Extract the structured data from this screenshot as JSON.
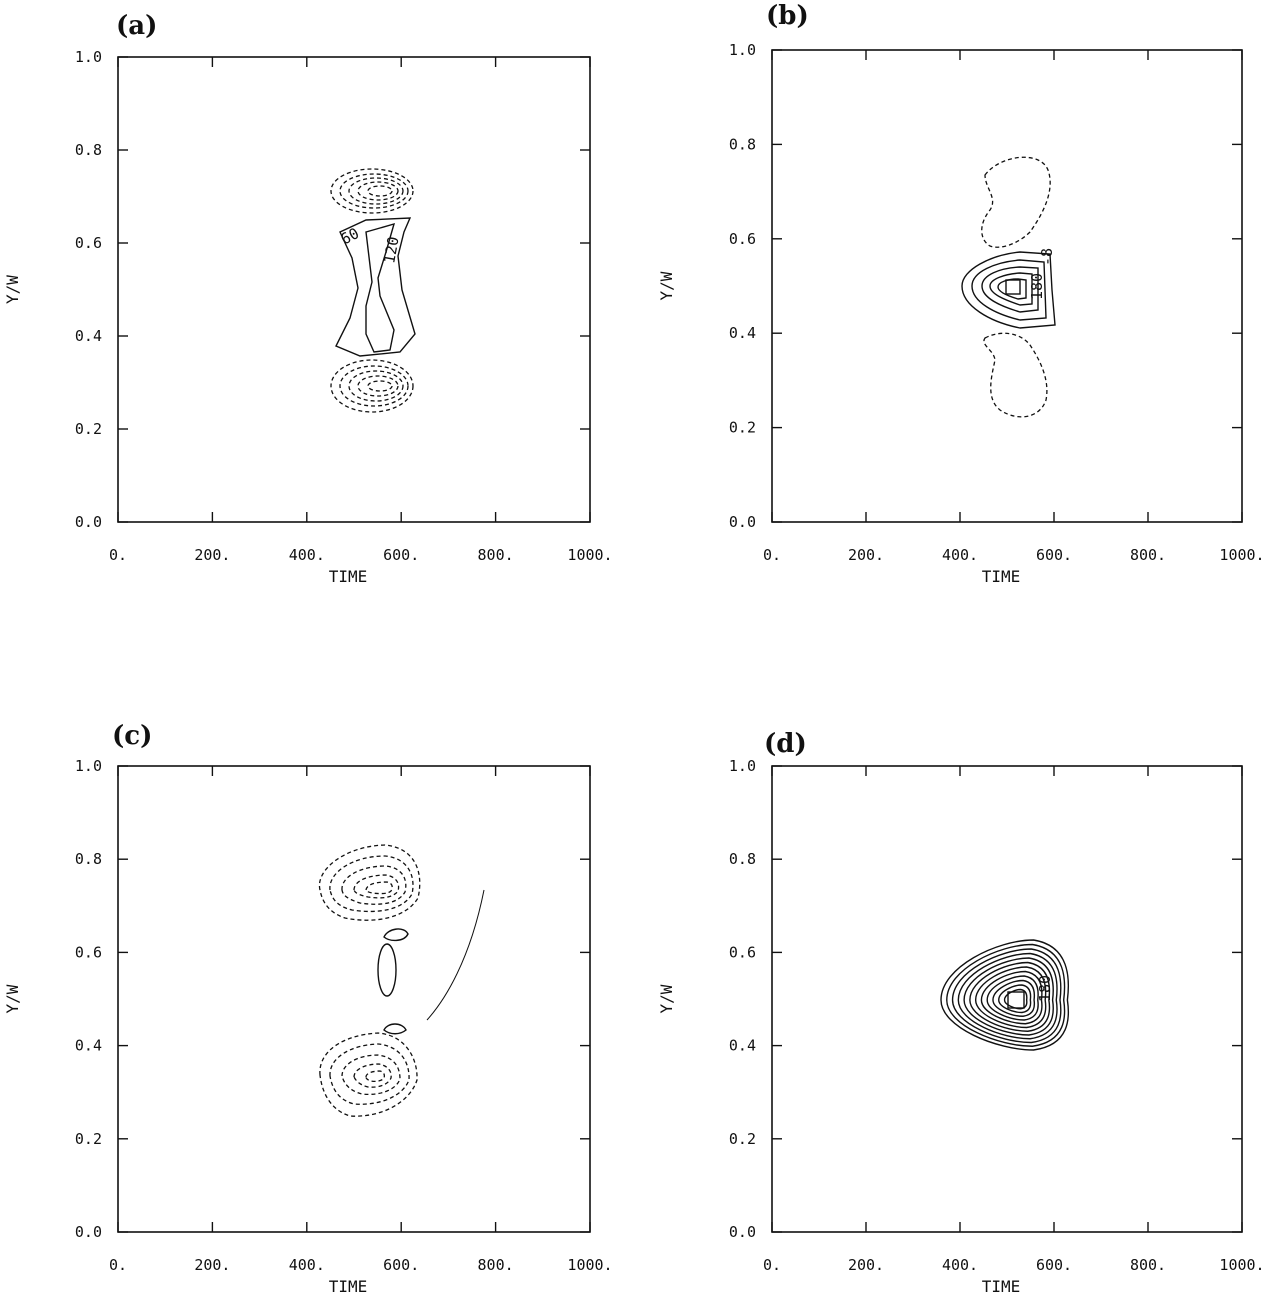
{
  "chart_data": [
    {
      "type": "contour",
      "panel_label": "(a)",
      "xlabel": "TIME",
      "ylabel": "Y/W",
      "xlim": [
        0,
        1000
      ],
      "ylim": [
        0,
        1
      ],
      "xticks": [
        "0.",
        "200.",
        "400.",
        "600.",
        "800.",
        "1000."
      ],
      "yticks": [
        "0.0",
        "0.2",
        "0.4",
        "0.6",
        "0.8",
        "1.0"
      ],
      "contour_labels": [
        "60",
        "120"
      ],
      "features": [
        {
          "kind": "positive",
          "center": [
            550,
            0.5
          ],
          "description": "hourglass-shaped region",
          "levels": [
            60,
            120
          ]
        },
        {
          "kind": "negative",
          "center": [
            550,
            0.72
          ]
        },
        {
          "kind": "negative",
          "center": [
            550,
            0.28
          ]
        }
      ]
    },
    {
      "type": "contour",
      "panel_label": "(b)",
      "xlabel": "TIME",
      "ylabel": "Y/W",
      "xlim": [
        0,
        1000
      ],
      "ylim": [
        0,
        1
      ],
      "xticks": [
        "0.",
        "200.",
        "400.",
        "600.",
        "800.",
        "1000."
      ],
      "yticks": [
        "0.0",
        "0.2",
        "0.4",
        "0.6",
        "0.8",
        "1.0"
      ],
      "contour_labels": [
        "180",
        "-8"
      ],
      "features": [
        {
          "kind": "positive",
          "center": [
            530,
            0.5
          ],
          "peak_label": 180
        },
        {
          "kind": "negative",
          "center": [
            550,
            0.68
          ]
        },
        {
          "kind": "negative",
          "center": [
            550,
            0.32
          ]
        }
      ]
    },
    {
      "type": "contour",
      "panel_label": "(c)",
      "xlabel": "TIME",
      "ylabel": "Y/W",
      "xlim": [
        0,
        1000
      ],
      "ylim": [
        0,
        1
      ],
      "xticks": [
        "0.",
        "200.",
        "400.",
        "600.",
        "800.",
        "1000."
      ],
      "yticks": [
        "0.0",
        "0.2",
        "0.4",
        "0.6",
        "0.8",
        "1.0"
      ],
      "contour_labels": [],
      "features": [
        {
          "kind": "negative",
          "center": [
            530,
            0.71
          ]
        },
        {
          "kind": "negative",
          "center": [
            530,
            0.29
          ]
        },
        {
          "kind": "positive",
          "center": [
            570,
            0.5
          ]
        },
        {
          "kind": "positive",
          "center": [
            590,
            0.64
          ]
        },
        {
          "kind": "positive",
          "center": [
            590,
            0.38
          ]
        }
      ]
    },
    {
      "type": "contour",
      "panel_label": "(d)",
      "xlabel": "TIME",
      "ylabel": "Y/W",
      "xlim": [
        0,
        1000
      ],
      "ylim": [
        0,
        1
      ],
      "xticks": [
        "0.",
        "200.",
        "400.",
        "600.",
        "800.",
        "1000."
      ],
      "yticks": [
        "0.0",
        "0.2",
        "0.4",
        "0.6",
        "0.8",
        "1.0"
      ],
      "contour_labels": [
        "180"
      ],
      "features": [
        {
          "kind": "positive",
          "center": [
            510,
            0.5
          ],
          "peak_label": 180
        }
      ]
    }
  ]
}
